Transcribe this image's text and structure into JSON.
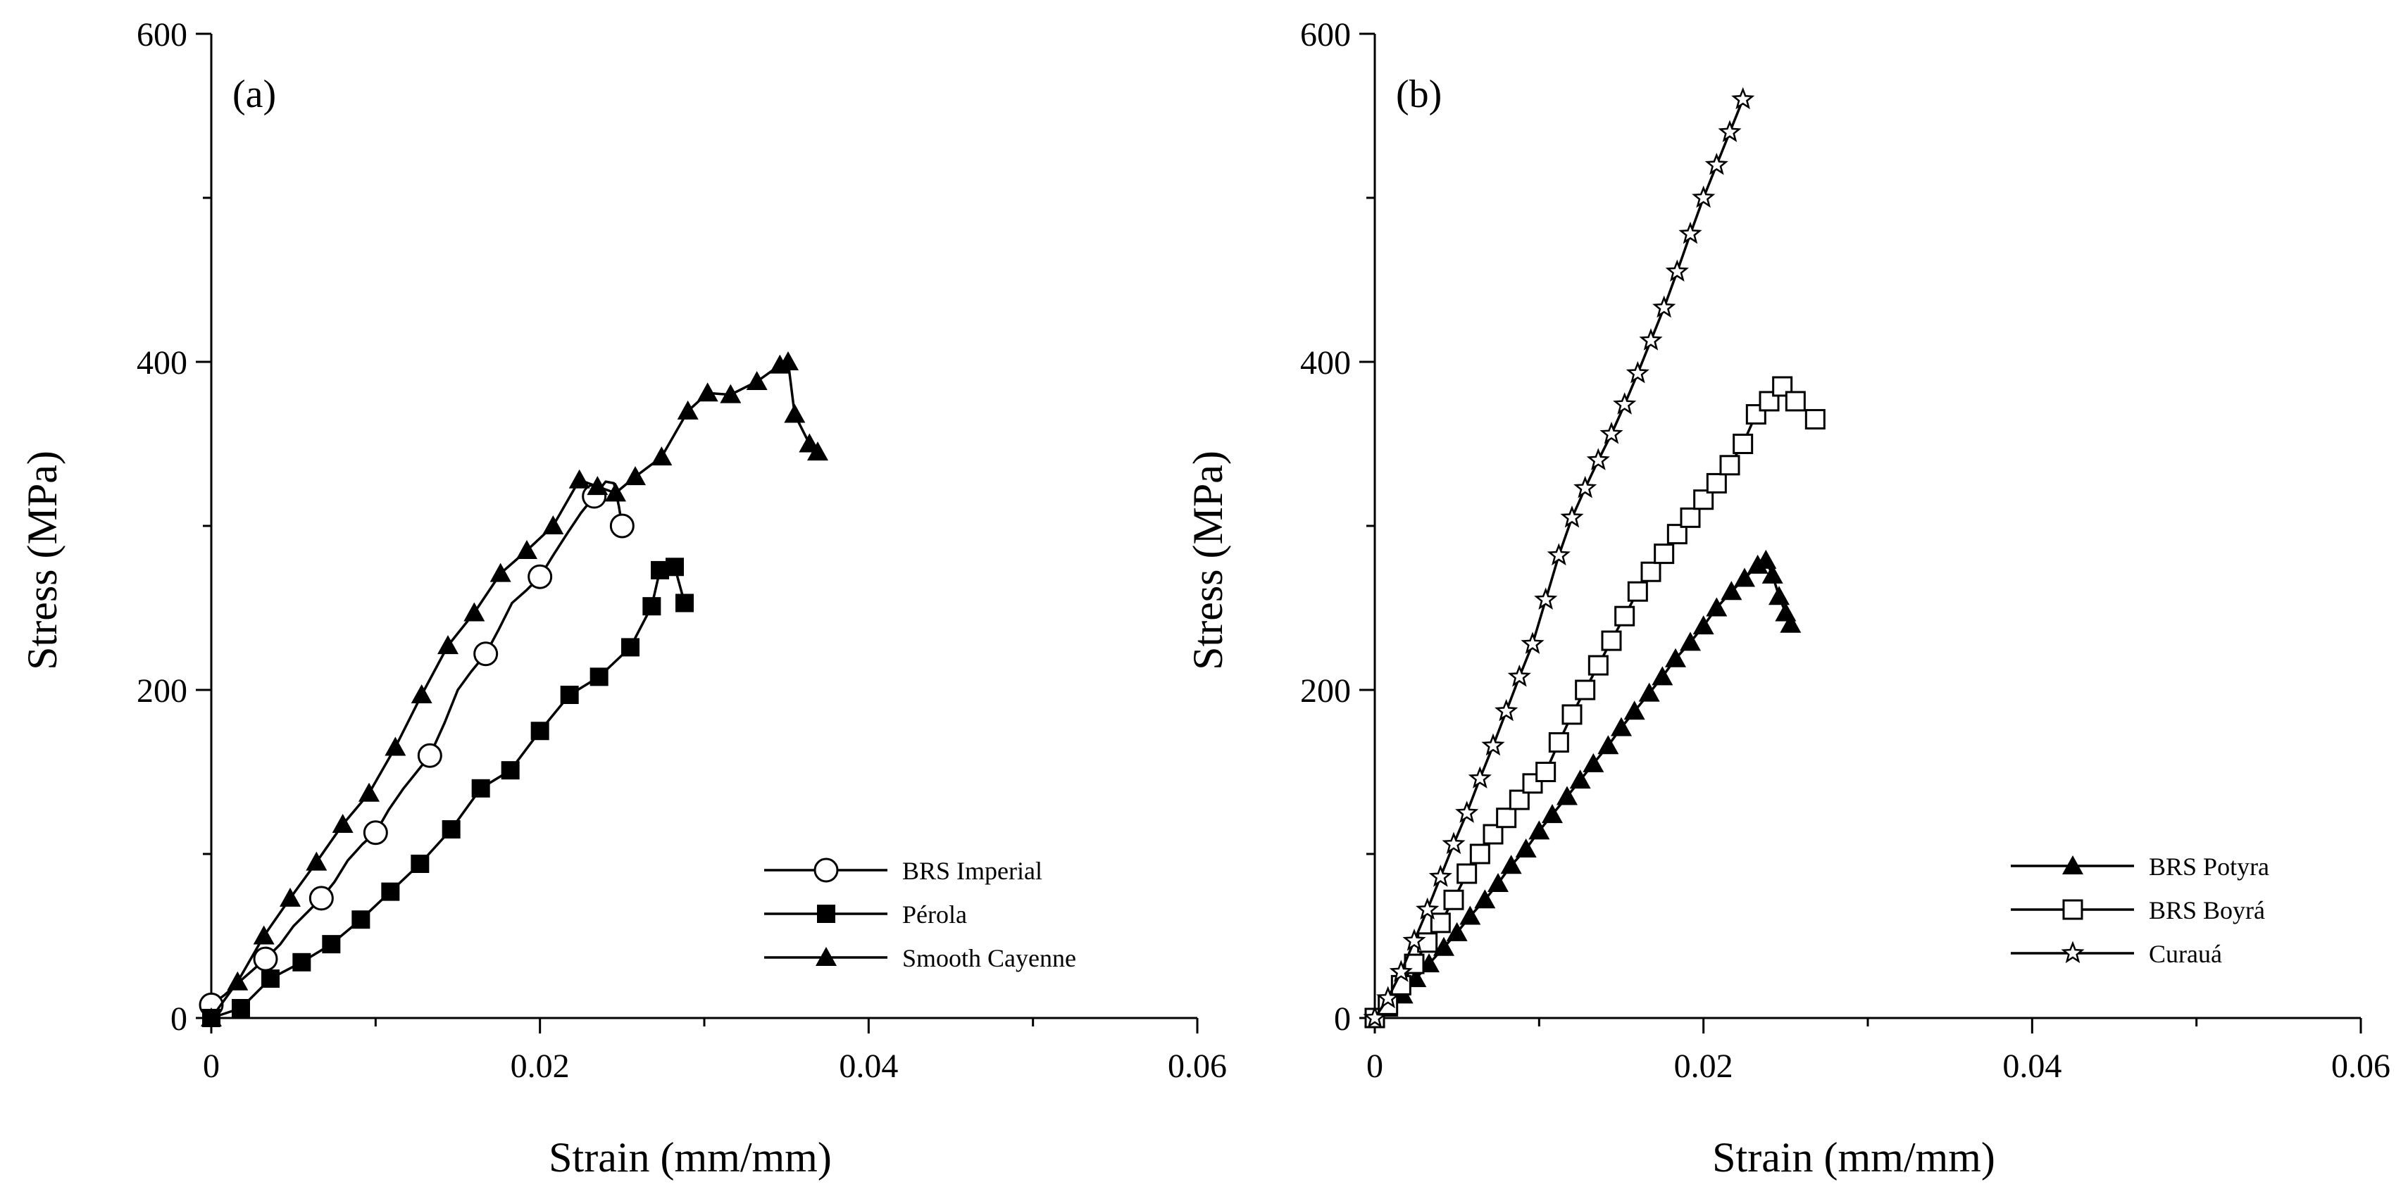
{
  "figure": {
    "background": "#ffffff",
    "ink": "#000000"
  },
  "chart_data": [
    {
      "type": "line",
      "panel_label": "(a)",
      "xlabel": "Strain (mm/mm)",
      "ylabel": "Stress (MPa)",
      "xlim": [
        0,
        0.06
      ],
      "ylim": [
        0,
        600
      ],
      "x_ticks": [
        0,
        0.02,
        0.04,
        0.06
      ],
      "x_tick_labels": [
        "0",
        "0.02",
        "0.04",
        "0.06"
      ],
      "y_ticks": [
        0,
        200,
        400,
        600
      ],
      "y_tick_labels": [
        "0",
        "200",
        "400",
        "600"
      ],
      "grid": false,
      "legend_position": "bottom-right",
      "series": [
        {
          "name": "BRS Imperial",
          "marker": "circle-open",
          "marker_every": 4,
          "x": [
            0,
            0.0008,
            0.0017,
            0.0025,
            0.0033,
            0.0042,
            0.005,
            0.0058,
            0.0067,
            0.0075,
            0.0083,
            0.0092,
            0.01,
            0.0108,
            0.0117,
            0.0125,
            0.0133,
            0.0142,
            0.015,
            0.0158,
            0.0167,
            0.0175,
            0.0183,
            0.0192,
            0.02,
            0.0208,
            0.0217,
            0.0225,
            0.0233,
            0.024,
            0.0245,
            0.0248,
            0.025,
            0.0253
          ],
          "y": [
            8,
            14,
            22,
            29,
            36,
            45,
            56,
            64,
            73,
            83,
            96,
            106,
            113,
            127,
            140,
            150,
            160,
            180,
            200,
            211,
            222,
            237,
            253,
            261,
            269,
            282,
            296,
            308,
            318,
            327,
            326,
            312,
            300,
            294
          ]
        },
        {
          "name": "Pérola",
          "marker": "square-filled",
          "marker_every": 1,
          "x": [
            0,
            0.0018,
            0.0036,
            0.0055,
            0.0073,
            0.0091,
            0.0109,
            0.0127,
            0.0146,
            0.0164,
            0.0182,
            0.02,
            0.0218,
            0.0236,
            0.0255,
            0.0268,
            0.0273,
            0.0282,
            0.0288
          ],
          "y": [
            0,
            6,
            24,
            34,
            45,
            60,
            77,
            94,
            115,
            140,
            151,
            175,
            197,
            208,
            226,
            251,
            273,
            275,
            253
          ]
        },
        {
          "name": "Smooth Cayenne",
          "marker": "triangle-filled",
          "marker_every": 1,
          "x": [
            0,
            0.0016,
            0.0032,
            0.0048,
            0.0064,
            0.008,
            0.0096,
            0.0112,
            0.0128,
            0.0144,
            0.016,
            0.0176,
            0.0192,
            0.0208,
            0.0224,
            0.0235,
            0.0246,
            0.0258,
            0.0274,
            0.029,
            0.0302,
            0.0316,
            0.0332,
            0.0346,
            0.0351,
            0.0355,
            0.0364,
            0.0369
          ],
          "y": [
            0,
            22,
            50,
            73,
            95,
            118,
            137,
            165,
            197,
            227,
            247,
            271,
            285,
            300,
            328,
            324,
            320,
            330,
            342,
            370,
            381,
            380,
            388,
            398,
            400,
            368,
            350,
            345
          ]
        }
      ]
    },
    {
      "type": "line",
      "panel_label": "(b)",
      "xlabel": "Strain (mm/mm)",
      "ylabel": "Stress (MPa)",
      "xlim": [
        0,
        0.06
      ],
      "ylim": [
        0,
        600
      ],
      "x_ticks": [
        0,
        0.02,
        0.04,
        0.06
      ],
      "x_tick_labels": [
        "0",
        "0.02",
        "0.04",
        "0.06"
      ],
      "y_ticks": [
        0,
        200,
        400,
        600
      ],
      "y_tick_labels": [
        "0",
        "200",
        "400",
        "600"
      ],
      "grid": false,
      "legend_position": "bottom-right",
      "series": [
        {
          "name": "BRS Potyra",
          "marker": "triangle-filled",
          "marker_every": 1,
          "x": [
            0,
            0.0008,
            0.0017,
            0.0025,
            0.0033,
            0.0042,
            0.005,
            0.0058,
            0.0067,
            0.0075,
            0.0083,
            0.0092,
            0.01,
            0.0108,
            0.0117,
            0.0125,
            0.0133,
            0.0142,
            0.015,
            0.0158,
            0.0167,
            0.0175,
            0.0183,
            0.0192,
            0.02,
            0.0208,
            0.0217,
            0.0225,
            0.0233,
            0.0238,
            0.0242,
            0.0246,
            0.025,
            0.0253
          ],
          "y": [
            0,
            6,
            14,
            24,
            33,
            43,
            52,
            62,
            72,
            82,
            93,
            103,
            114,
            124,
            135,
            145,
            155,
            166,
            177,
            187,
            198,
            208,
            219,
            229,
            239,
            250,
            260,
            268,
            276,
            279,
            270,
            257,
            247,
            240
          ]
        },
        {
          "name": "BRS Boyrá",
          "marker": "square-open",
          "marker_every": 1,
          "x": [
            0,
            0.0008,
            0.0016,
            0.0024,
            0.0032,
            0.004,
            0.0048,
            0.0056,
            0.0064,
            0.0072,
            0.008,
            0.0088,
            0.0096,
            0.0104,
            0.0112,
            0.012,
            0.0128,
            0.0136,
            0.0144,
            0.0152,
            0.016,
            0.0168,
            0.0176,
            0.0184,
            0.0192,
            0.02,
            0.0208,
            0.0216,
            0.0224,
            0.0232,
            0.024,
            0.0248,
            0.0256,
            0.0268
          ],
          "y": [
            0,
            8,
            20,
            33,
            46,
            58,
            72,
            88,
            100,
            112,
            122,
            133,
            143,
            150,
            168,
            185,
            200,
            215,
            230,
            245,
            260,
            272,
            283,
            295,
            305,
            316,
            326,
            337,
            350,
            368,
            376,
            385,
            376,
            365
          ]
        },
        {
          "name": "Curauá",
          "marker": "star-open",
          "marker_every": 1,
          "x": [
            0,
            0.0008,
            0.0016,
            0.0024,
            0.0032,
            0.004,
            0.0048,
            0.0056,
            0.0064,
            0.0072,
            0.008,
            0.0088,
            0.0096,
            0.0104,
            0.0112,
            0.012,
            0.0128,
            0.0136,
            0.0144,
            0.0152,
            0.016,
            0.0168,
            0.0176,
            0.0184,
            0.0192,
            0.02,
            0.0208,
            0.0216,
            0.0224
          ],
          "y": [
            0,
            12,
            28,
            47,
            66,
            86,
            106,
            125,
            146,
            166,
            187,
            208,
            228,
            255,
            282,
            305,
            323,
            340,
            356,
            374,
            393,
            413,
            433,
            455,
            478,
            500,
            520,
            540,
            560
          ]
        }
      ]
    }
  ]
}
